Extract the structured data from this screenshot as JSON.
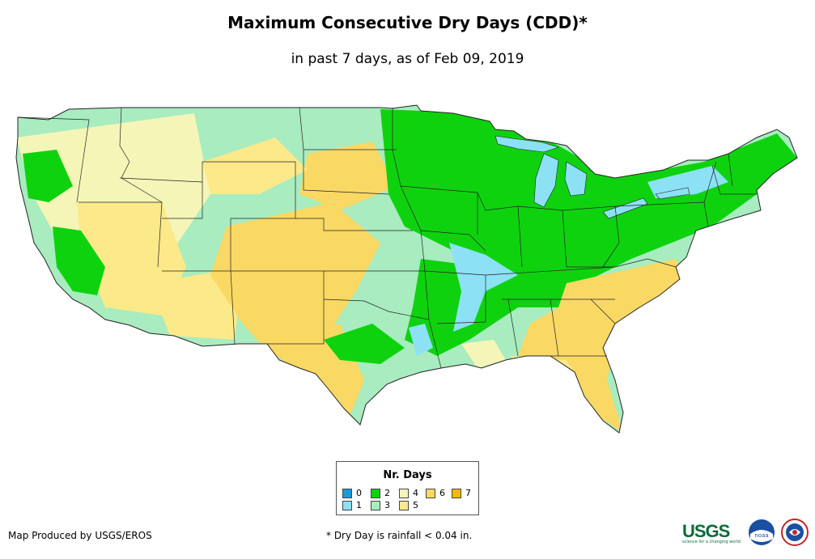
{
  "title": "Maximum Consecutive Dry Days (CDD)*",
  "subtitle": "in past 7 days, as of Feb 09, 2019",
  "legend": {
    "title": "Nr. Days",
    "items": [
      {
        "label": "0",
        "color": "#1a9ad6"
      },
      {
        "label": "1",
        "color": "#8ce1f5"
      },
      {
        "label": "2",
        "color": "#0fd20f"
      },
      {
        "label": "3",
        "color": "#a8ecc0"
      },
      {
        "label": "4",
        "color": "#f5f5b8"
      },
      {
        "label": "5",
        "color": "#fbe98a"
      },
      {
        "label": "6",
        "color": "#fad864"
      },
      {
        "label": "7",
        "color": "#f5b800"
      }
    ]
  },
  "footer": {
    "credit": "Map Produced by USGS/EROS",
    "note": "* Dry Day is rainfall < 0.04 in."
  },
  "logos": {
    "usgs": "USGS",
    "usgs_tagline": "science for a changing world",
    "noaa": "noaa"
  }
}
